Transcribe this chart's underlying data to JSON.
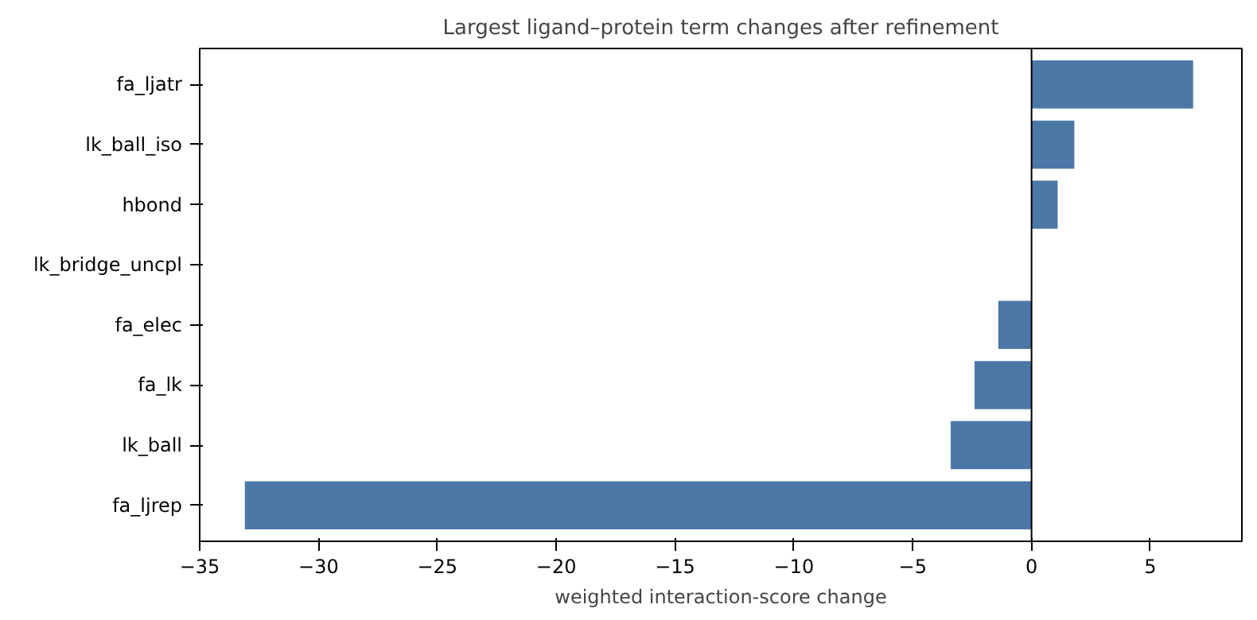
{
  "chart_data": {
    "type": "bar",
    "orientation": "horizontal",
    "title": "Largest ligand–protein term changes after refinement",
    "xlabel": "weighted interaction-score change",
    "categories": [
      "fa_ljatr",
      "lk_ball_iso",
      "hbond",
      "lk_bridge_uncpl",
      "fa_elec",
      "fa_lk",
      "lk_ball",
      "fa_ljrep"
    ],
    "values": [
      6.8,
      1.8,
      1.1,
      0,
      -1.4,
      -2.4,
      -3.4,
      -33.1
    ],
    "color": "#4c78a8",
    "xlim": [
      -35,
      8.85
    ],
    "xticks": [
      {
        "value": -35,
        "label": "−35"
      },
      {
        "value": -30,
        "label": "−30"
      },
      {
        "value": -25,
        "label": "−25"
      },
      {
        "value": -20,
        "label": "−20"
      },
      {
        "value": -15,
        "label": "−15"
      },
      {
        "value": -10,
        "label": "−10"
      },
      {
        "value": -5,
        "label": "−5"
      },
      0,
      5
    ],
    "ref_lines": [
      {
        "axis": "x",
        "value": 0,
        "color": "#000000"
      }
    ],
    "grid": false
  }
}
